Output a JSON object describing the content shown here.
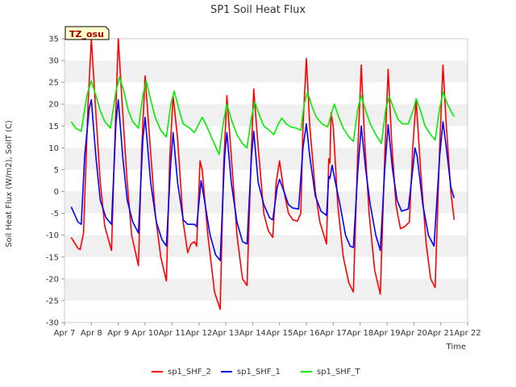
{
  "chart_data": {
    "type": "line",
    "title": "SP1 Soil Heat Flux",
    "xlabel": "Time",
    "ylabel": "Soil Heat Flux (W/m2), SoilT (C)",
    "badge": "TZ_osu",
    "xlim": [
      "Apr 7",
      "Apr 22"
    ],
    "ylim": [
      -30,
      35
    ],
    "xticks": [
      "Apr 7",
      "Apr 8",
      "Apr 9",
      "Apr 10",
      "Apr 11",
      "Apr 12",
      "Apr 13",
      "Apr 14",
      "Apr 15",
      "Apr 16",
      "Apr 17",
      "Apr 18",
      "Apr 19",
      "Apr 20",
      "Apr 21",
      "Apr 22"
    ],
    "yticks": [
      -30,
      -25,
      -20,
      -15,
      -10,
      -5,
      0,
      5,
      10,
      15,
      20,
      25,
      30,
      35
    ],
    "grid": "alternating horizontal bands",
    "legend_position": "bottom-center",
    "series": [
      {
        "name": "sp1_SHF_2",
        "color": "#ff0000",
        "points": [
          [
            "Apr 7 06:00",
            -10.5
          ],
          [
            "Apr 7 12:00",
            -13.0
          ],
          [
            "Apr 7 14:00",
            -13.3
          ],
          [
            "Apr 7 17:00",
            -9.5
          ],
          [
            "Apr 7 21:00",
            20.0
          ],
          [
            "Apr 8 00:00",
            35.0
          ],
          [
            "Apr 8 04:00",
            18.0
          ],
          [
            "Apr 8 08:00",
            2.0
          ],
          [
            "Apr 8 12:00",
            -8.0
          ],
          [
            "Apr 8 18:00",
            -13.5
          ],
          [
            "Apr 8 21:00",
            12.0
          ],
          [
            "Apr 9 00:00",
            35.0
          ],
          [
            "Apr 9 04:00",
            18.0
          ],
          [
            "Apr 9 08:00",
            2.0
          ],
          [
            "Apr 9 12:00",
            -10.0
          ],
          [
            "Apr 9 18:00",
            -17.0
          ],
          [
            "Apr 9 21:00",
            10.0
          ],
          [
            "Apr 10 00:00",
            26.5
          ],
          [
            "Apr 10 04:00",
            12.0
          ],
          [
            "Apr 10 09:00",
            -5.0
          ],
          [
            "Apr 10 14:00",
            -15.0
          ],
          [
            "Apr 10 19:00",
            -20.5
          ],
          [
            "Apr 10 22:00",
            8.0
          ],
          [
            "Apr 11 01:00",
            22.0
          ],
          [
            "Apr 11 05:00",
            12.0
          ],
          [
            "Apr 11 10:00",
            -7.0
          ],
          [
            "Apr 11 14:00",
            -14.0
          ],
          [
            "Apr 11 17:00",
            -12.0
          ],
          [
            "Apr 11 20:00",
            -11.5
          ],
          [
            "Apr 11 22:00",
            -12.5
          ],
          [
            "Apr 12 01:00",
            7.0
          ],
          [
            "Apr 12 03:00",
            5.0
          ],
          [
            "Apr 12 08:00",
            -10.0
          ],
          [
            "Apr 12 14:00",
            -23.0
          ],
          [
            "Apr 12 19:00",
            -27.0
          ],
          [
            "Apr 12 22:00",
            5.0
          ],
          [
            "Apr 13 01:00",
            22.0
          ],
          [
            "Apr 13 05:00",
            8.0
          ],
          [
            "Apr 13 10:00",
            -10.0
          ],
          [
            "Apr 13 15:00",
            -20.0
          ],
          [
            "Apr 13 19:00",
            -21.5
          ],
          [
            "Apr 13 23:00",
            10.0
          ],
          [
            "Apr 14 01:00",
            23.5
          ],
          [
            "Apr 14 05:00",
            10.0
          ],
          [
            "Apr 14 10:00",
            -5.0
          ],
          [
            "Apr 14 14:00",
            -9.0
          ],
          [
            "Apr 14 18:00",
            -10.5
          ],
          [
            "Apr 14 21:00",
            2.0
          ],
          [
            "Apr 15 00:00",
            7.0
          ],
          [
            "Apr 15 04:00",
            0.0
          ],
          [
            "Apr 15 08:00",
            -5.0
          ],
          [
            "Apr 15 12:00",
            -6.5
          ],
          [
            "Apr 15 16:00",
            -6.8
          ],
          [
            "Apr 15 19:00",
            -5.0
          ],
          [
            "Apr 15 21:00",
            15.0
          ],
          [
            "Apr 16 00:00",
            30.5
          ],
          [
            "Apr 16 03:00",
            15.0
          ],
          [
            "Apr 16 08:00",
            0.0
          ],
          [
            "Apr 16 12:00",
            -7.0
          ],
          [
            "Apr 16 18:00",
            -12.0
          ],
          [
            "Apr 16 20:00",
            7.5
          ],
          [
            "Apr 16 21:00",
            6.5
          ],
          [
            "Apr 16 22:00",
            18.0
          ],
          [
            "Apr 17 00:00",
            15.0
          ],
          [
            "Apr 17 04:00",
            -3.0
          ],
          [
            "Apr 17 09:00",
            -15.0
          ],
          [
            "Apr 17 14:00",
            -21.0
          ],
          [
            "Apr 17 18:00",
            -23.0
          ],
          [
            "Apr 17 22:00",
            10.0
          ],
          [
            "Apr 18 01:00",
            29.0
          ],
          [
            "Apr 18 04:00",
            12.0
          ],
          [
            "Apr 18 08:00",
            -5.0
          ],
          [
            "Apr 18 13:00",
            -18.0
          ],
          [
            "Apr 18 18:00",
            -23.5
          ],
          [
            "Apr 18 22:00",
            8.0
          ],
          [
            "Apr 19 01:00",
            28.0
          ],
          [
            "Apr 19 04:00",
            12.0
          ],
          [
            "Apr 19 08:00",
            -3.0
          ],
          [
            "Apr 19 12:00",
            -8.5
          ],
          [
            "Apr 19 16:00",
            -8.0
          ],
          [
            "Apr 19 20:00",
            -7.0
          ],
          [
            "Apr 19 23:00",
            10.0
          ],
          [
            "Apr 20 02:00",
            21.0
          ],
          [
            "Apr 20 06:00",
            5.0
          ],
          [
            "Apr 20 11:00",
            -12.0
          ],
          [
            "Apr 20 15:00",
            -20.0
          ],
          [
            "Apr 20 19:00",
            -22.0
          ],
          [
            "Apr 20 23:00",
            10.0
          ],
          [
            "Apr 21 02:00",
            29.0
          ],
          [
            "Apr 21 05:00",
            15.0
          ],
          [
            "Apr 21 09:00",
            0.0
          ],
          [
            "Apr 21 12:00",
            -6.5
          ]
        ]
      },
      {
        "name": "sp1_SHF_1",
        "color": "#0000ff",
        "points": [
          [
            "Apr 7 06:00",
            -3.5
          ],
          [
            "Apr 7 12:00",
            -7.0
          ],
          [
            "Apr 7 15:00",
            -7.5
          ],
          [
            "Apr 7 18:00",
            8.0
          ],
          [
            "Apr 7 22:00",
            19.0
          ],
          [
            "Apr 8 00:00",
            21.0
          ],
          [
            "Apr 8 04:00",
            8.0
          ],
          [
            "Apr 8 08:00",
            -2.0
          ],
          [
            "Apr 8 13:00",
            -6.0
          ],
          [
            "Apr 8 18:00",
            -7.5
          ],
          [
            "Apr 8 22:00",
            16.0
          ],
          [
            "Apr 9 00:00",
            21.0
          ],
          [
            "Apr 9 04:00",
            8.0
          ],
          [
            "Apr 9 08:00",
            -2.0
          ],
          [
            "Apr 9 13:00",
            -7.0
          ],
          [
            "Apr 9 18:00",
            -9.5
          ],
          [
            "Apr 9 22:00",
            12.0
          ],
          [
            "Apr 10 00:00",
            17.0
          ],
          [
            "Apr 10 05:00",
            2.0
          ],
          [
            "Apr 10 10:00",
            -7.0
          ],
          [
            "Apr 10 15:00",
            -11.0
          ],
          [
            "Apr 10 19:00",
            -12.5
          ],
          [
            "Apr 10 23:00",
            7.0
          ],
          [
            "Apr 11 01:00",
            13.5
          ],
          [
            "Apr 11 05:00",
            2.0
          ],
          [
            "Apr 11 10:00",
            -6.5
          ],
          [
            "Apr 11 14:00",
            -7.5
          ],
          [
            "Apr 11 20:00",
            -7.5
          ],
          [
            "Apr 11 22:00",
            -8.0
          ],
          [
            "Apr 12 02:00",
            2.5
          ],
          [
            "Apr 12 05:00",
            -2.0
          ],
          [
            "Apr 12 10:00",
            -10.0
          ],
          [
            "Apr 12 15:00",
            -14.5
          ],
          [
            "Apr 12 19:00",
            -15.8
          ],
          [
            "Apr 12 23:00",
            8.0
          ],
          [
            "Apr 13 01:00",
            13.5
          ],
          [
            "Apr 13 05:00",
            2.0
          ],
          [
            "Apr 13 10:00",
            -7.0
          ],
          [
            "Apr 13 15:00",
            -11.5
          ],
          [
            "Apr 13 19:00",
            -12.0
          ],
          [
            "Apr 13 23:00",
            8.0
          ],
          [
            "Apr 14 01:00",
            13.8
          ],
          [
            "Apr 14 05:00",
            2.0
          ],
          [
            "Apr 14 10:00",
            -3.0
          ],
          [
            "Apr 14 15:00",
            -6.0
          ],
          [
            "Apr 14 18:00",
            -6.5
          ],
          [
            "Apr 14 22:00",
            1.0
          ],
          [
            "Apr 15 00:00",
            2.8
          ],
          [
            "Apr 15 04:00",
            0.0
          ],
          [
            "Apr 15 08:00",
            -3.0
          ],
          [
            "Apr 15 12:00",
            -3.8
          ],
          [
            "Apr 15 17:00",
            -4.0
          ],
          [
            "Apr 15 21:00",
            10.0
          ],
          [
            "Apr 16 00:00",
            15.5
          ],
          [
            "Apr 16 03:00",
            8.0
          ],
          [
            "Apr 16 08:00",
            -1.0
          ],
          [
            "Apr 16 13:00",
            -4.5
          ],
          [
            "Apr 16 18:00",
            -5.5
          ],
          [
            "Apr 16 20:00",
            3.5
          ],
          [
            "Apr 16 21:00",
            3.0
          ],
          [
            "Apr 16 23:00",
            6.0
          ],
          [
            "Apr 17 02:00",
            2.0
          ],
          [
            "Apr 17 06:00",
            -3.0
          ],
          [
            "Apr 17 11:00",
            -10.0
          ],
          [
            "Apr 17 15:00",
            -12.5
          ],
          [
            "Apr 17 18:00",
            -12.8
          ],
          [
            "Apr 17 22:00",
            5.0
          ],
          [
            "Apr 18 01:00",
            15.0
          ],
          [
            "Apr 18 05:00",
            5.0
          ],
          [
            "Apr 18 09:00",
            -3.0
          ],
          [
            "Apr 18 14:00",
            -10.0
          ],
          [
            "Apr 18 18:00",
            -13.5
          ],
          [
            "Apr 18 22:00",
            5.0
          ],
          [
            "Apr 19 01:00",
            15.3
          ],
          [
            "Apr 19 05:00",
            5.0
          ],
          [
            "Apr 19 09:00",
            -2.0
          ],
          [
            "Apr 19 13:00",
            -4.5
          ],
          [
            "Apr 19 19:00",
            -4.0
          ],
          [
            "Apr 19 23:00",
            5.0
          ],
          [
            "Apr 20 01:00",
            10.0
          ],
          [
            "Apr 20 03:00",
            8.0
          ],
          [
            "Apr 20 08:00",
            -3.0
          ],
          [
            "Apr 20 13:00",
            -10.0
          ],
          [
            "Apr 20 18:00",
            -12.5
          ],
          [
            "Apr 20 23:00",
            8.0
          ],
          [
            "Apr 21 02:00",
            16.0
          ],
          [
            "Apr 21 05:00",
            10.0
          ],
          [
            "Apr 21 09:00",
            1.0
          ],
          [
            "Apr 21 12:00",
            -1.5
          ]
        ]
      },
      {
        "name": "sp1_SHF_T",
        "color": "#00ee00",
        "points": [
          [
            "Apr 7 06:00",
            16.0
          ],
          [
            "Apr 7 10:00",
            14.5
          ],
          [
            "Apr 7 15:00",
            13.8
          ],
          [
            "Apr 7 20:00",
            22.0
          ],
          [
            "Apr 8 00:00",
            25.3
          ],
          [
            "Apr 8 04:00",
            22.0
          ],
          [
            "Apr 8 08:00",
            18.5
          ],
          [
            "Apr 8 12:00",
            16.0
          ],
          [
            "Apr 8 17:00",
            14.5
          ],
          [
            "Apr 8 22:00",
            23.0
          ],
          [
            "Apr 9 01:00",
            26.2
          ],
          [
            "Apr 9 05:00",
            23.0
          ],
          [
            "Apr 9 09:00",
            18.5
          ],
          [
            "Apr 9 13:00",
            16.0
          ],
          [
            "Apr 9 18:00",
            14.5
          ],
          [
            "Apr 9 22:00",
            22.0
          ],
          [
            "Apr 10 01:00",
            25.3
          ],
          [
            "Apr 10 05:00",
            21.0
          ],
          [
            "Apr 10 09:00",
            17.0
          ],
          [
            "Apr 10 14:00",
            14.0
          ],
          [
            "Apr 10 19:00",
            12.5
          ],
          [
            "Apr 10 23:00",
            20.0
          ],
          [
            "Apr 11 02:00",
            23.0
          ],
          [
            "Apr 11 06:00",
            19.0
          ],
          [
            "Apr 11 10:00",
            15.5
          ],
          [
            "Apr 11 16:00",
            14.5
          ],
          [
            "Apr 11 20:00",
            13.5
          ],
          [
            "Apr 12 00:00",
            15.5
          ],
          [
            "Apr 12 03:00",
            17.0
          ],
          [
            "Apr 12 07:00",
            15.0
          ],
          [
            "Apr 12 12:00",
            12.0
          ],
          [
            "Apr 12 18:00",
            8.5
          ],
          [
            "Apr 12 22:00",
            16.0
          ],
          [
            "Apr 13 01:00",
            20.0
          ],
          [
            "Apr 13 05:00",
            16.5
          ],
          [
            "Apr 13 10:00",
            13.0
          ],
          [
            "Apr 13 15:00",
            11.0
          ],
          [
            "Apr 13 19:00",
            10.0
          ],
          [
            "Apr 13 23:00",
            17.0
          ],
          [
            "Apr 14 02:00",
            20.5
          ],
          [
            "Apr 14 06:00",
            17.5
          ],
          [
            "Apr 14 10:00",
            15.0
          ],
          [
            "Apr 14 15:00",
            14.0
          ],
          [
            "Apr 14 19:00",
            13.0
          ],
          [
            "Apr 14 23:00",
            15.5
          ],
          [
            "Apr 15 02:00",
            16.8
          ],
          [
            "Apr 15 06:00",
            15.5
          ],
          [
            "Apr 15 10:00",
            14.8
          ],
          [
            "Apr 15 15:00",
            14.5
          ],
          [
            "Apr 15 19:00",
            14.0
          ],
          [
            "Apr 15 22:00",
            20.0
          ],
          [
            "Apr 16 01:00",
            22.8
          ],
          [
            "Apr 16 05:00",
            19.5
          ],
          [
            "Apr 16 09:00",
            17.0
          ],
          [
            "Apr 16 14:00",
            15.5
          ],
          [
            "Apr 16 19:00",
            14.8
          ],
          [
            "Apr 16 22:00",
            17.5
          ],
          [
            "Apr 17 01:00",
            20.0
          ],
          [
            "Apr 17 05:00",
            17.0
          ],
          [
            "Apr 17 09:00",
            14.5
          ],
          [
            "Apr 17 14:00",
            12.5
          ],
          [
            "Apr 17 18:00",
            11.5
          ],
          [
            "Apr 17 22:00",
            19.0
          ],
          [
            "Apr 18 01:00",
            22.0
          ],
          [
            "Apr 18 05:00",
            18.5
          ],
          [
            "Apr 18 09:00",
            15.5
          ],
          [
            "Apr 18 14:00",
            13.0
          ],
          [
            "Apr 18 19:00",
            11.0
          ],
          [
            "Apr 18 23:00",
            19.0
          ],
          [
            "Apr 19 02:00",
            21.8
          ],
          [
            "Apr 19 06:00",
            19.0
          ],
          [
            "Apr 19 10:00",
            16.5
          ],
          [
            "Apr 19 14:00",
            15.5
          ],
          [
            "Apr 19 19:00",
            15.5
          ],
          [
            "Apr 20 00:00",
            19.0
          ],
          [
            "Apr 20 02:00",
            21.2
          ],
          [
            "Apr 20 06:00",
            18.5
          ],
          [
            "Apr 20 10:00",
            15.0
          ],
          [
            "Apr 20 15:00",
            13.0
          ],
          [
            "Apr 20 19:00",
            11.8
          ],
          [
            "Apr 20 23:00",
            19.0
          ],
          [
            "Apr 21 02:00",
            22.8
          ],
          [
            "Apr 21 06:00",
            20.0
          ],
          [
            "Apr 21 10:00",
            18.0
          ],
          [
            "Apr 21 12:00",
            17.2
          ]
        ]
      }
    ]
  }
}
